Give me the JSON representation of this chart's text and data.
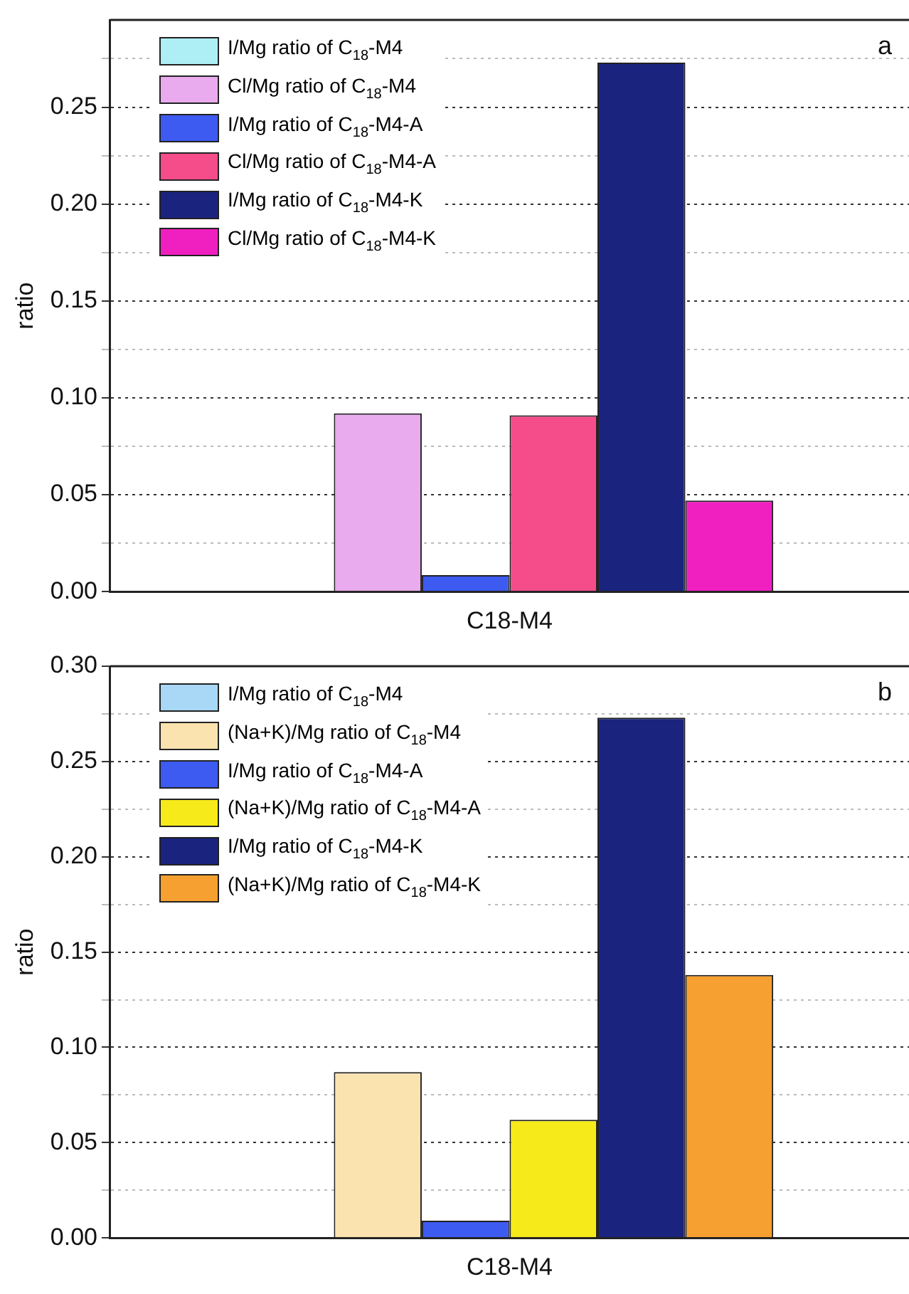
{
  "chart_data": [
    {
      "type": "bar",
      "annotations": [
        "a"
      ],
      "ylabel": "ratio",
      "categories": [
        "C18-M4"
      ],
      "ylim": [
        0,
        0.295
      ],
      "yticks": [
        {
          "value": 0,
          "label": "0.00"
        },
        {
          "value": 0.025,
          "label": null
        },
        0.05,
        {
          "value": 0.075,
          "label": null
        },
        {
          "value": 0.1,
          "label": "0.10"
        },
        {
          "value": 0.125,
          "label": null
        },
        0.15,
        {
          "value": 0.175,
          "label": null
        },
        {
          "value": 0.2,
          "label": "0.20"
        },
        {
          "value": 0.225,
          "label": null
        },
        0.25,
        {
          "value": 0.275,
          "label": null
        }
      ],
      "grid": "y",
      "legend": "top left",
      "series": [
        {
          "name": "I/Mg ratio of C$_{18}$-M4",
          "color": "#aeeef5",
          "values": [
            0
          ]
        },
        {
          "name": "Cl/Mg ratio of C$_{18}$-M4",
          "color": "#eaaaee",
          "values": [
            0.092
          ]
        },
        {
          "name": "I/Mg ratio of C$_{18}$-M4-A",
          "color": "#3d5bf0",
          "values": [
            0.0085
          ]
        },
        {
          "name": "Cl/Mg ratio of C$_{18}$-M4-A",
          "color": "#f54c8a",
          "values": [
            0.091
          ]
        },
        {
          "name": "I/Mg ratio of C$_{18}$-M4-K",
          "color": "#1a237e",
          "values": [
            0.273
          ]
        },
        {
          "name": "Cl/Mg ratio of C$_{18}$-M4-K",
          "color": "#f01fc0",
          "values": [
            0.047
          ]
        }
      ]
    },
    {
      "type": "bar",
      "annotations": [
        "b"
      ],
      "ylabel": "ratio",
      "categories": [
        "C18-M4"
      ],
      "ylim": [
        0,
        0.3
      ],
      "yticks": [
        {
          "value": 0,
          "label": "0.00"
        },
        {
          "value": 0.025,
          "label": null
        },
        0.05,
        {
          "value": 0.075,
          "label": null
        },
        {
          "value": 0.1,
          "label": "0.10"
        },
        {
          "value": 0.125,
          "label": null
        },
        0.15,
        {
          "value": 0.175,
          "label": null
        },
        {
          "value": 0.2,
          "label": "0.20"
        },
        {
          "value": 0.225,
          "label": null
        },
        0.25,
        {
          "value": 0.275,
          "label": null
        },
        {
          "value": 0.3,
          "label": "0.30"
        }
      ],
      "grid": "y",
      "legend": "top left",
      "series": [
        {
          "name": "I/Mg ratio of C$_{18}$-M4",
          "color": "#a8d8f5",
          "values": [
            0
          ]
        },
        {
          "name": "(Na+K)/Mg ratio of C$_{18}$-M4",
          "color": "#fbe3b0",
          "values": [
            0.087
          ]
        },
        {
          "name": "I/Mg ratio of C$_{18}$-M4-A",
          "color": "#3d5bf0",
          "values": [
            0.009
          ]
        },
        {
          "name": "(Na+K)/Mg ratio of C$_{18}$-M4-A",
          "color": "#f7ea1a",
          "values": [
            0.062
          ]
        },
        {
          "name": "I/Mg ratio of C$_{18}$-M4-K",
          "color": "#1a237e",
          "values": [
            0.273
          ]
        },
        {
          "name": "(Na+K)/Mg ratio of C$_{18}$-M4-K",
          "color": "#f5a030",
          "values": [
            0.138
          ]
        }
      ]
    }
  ]
}
